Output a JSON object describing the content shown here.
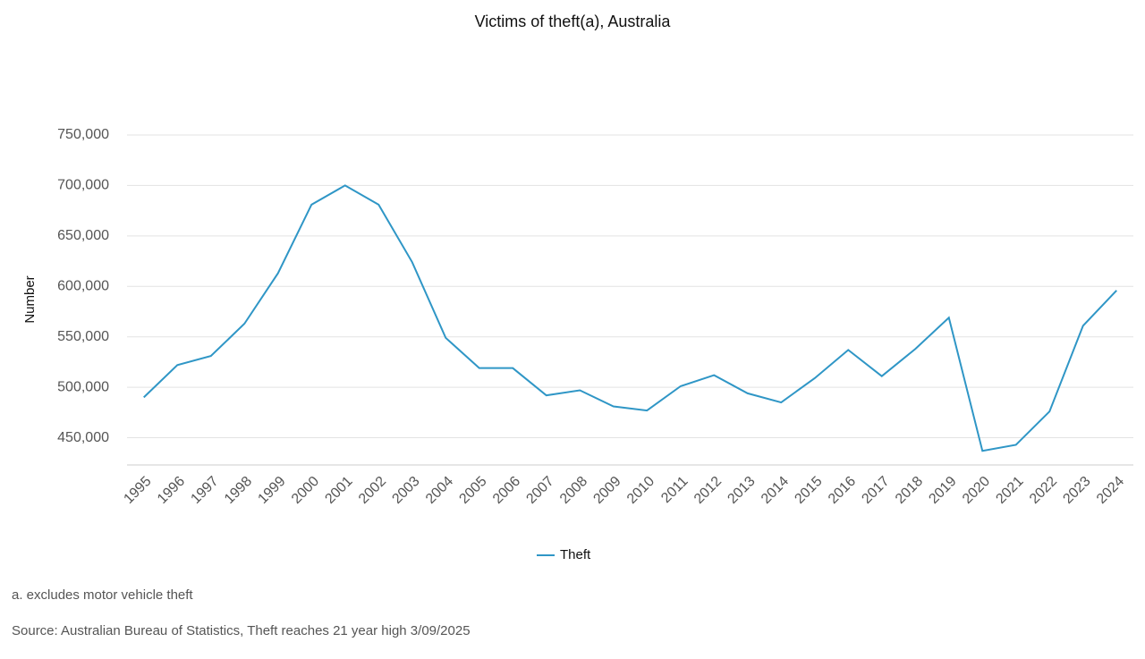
{
  "chart_data": {
    "type": "line",
    "title": "Victims of theft(a), Australia",
    "y_label": "Number",
    "categories": [
      "1995",
      "1996",
      "1997",
      "1998",
      "1999",
      "2000",
      "2001",
      "2002",
      "2003",
      "2004",
      "2005",
      "2006",
      "2007",
      "2008",
      "2009",
      "2010",
      "2011",
      "2012",
      "2013",
      "2014",
      "2015",
      "2016",
      "2017",
      "2018",
      "2019",
      "2020",
      "2021",
      "2022",
      "2023",
      "2024"
    ],
    "series": [
      {
        "name": "Theft",
        "color": "#2f96c6",
        "values": [
          490000,
          522000,
          531000,
          563000,
          613000,
          681000,
          700000,
          681000,
          624000,
          549000,
          519000,
          519000,
          492000,
          497000,
          481000,
          477000,
          501000,
          512000,
          494000,
          485000,
          509000,
          537000,
          511000,
          538000,
          569000,
          437000,
          443000,
          476000,
          561000,
          596000
        ]
      }
    ],
    "ylim": [
      423000,
      750000
    ],
    "yticks": [
      {
        "value": 450000,
        "label": "450,000"
      },
      {
        "value": 500000,
        "label": "500,000"
      },
      {
        "value": 550000,
        "label": "550,000"
      },
      {
        "value": 600000,
        "label": "600,000"
      },
      {
        "value": 650000,
        "label": "650,000"
      },
      {
        "value": 700000,
        "label": "700,000"
      },
      {
        "value": 750000,
        "label": "750,000"
      }
    ],
    "grid": true,
    "legend": "bottom",
    "footnote": "a. excludes motor vehicle theft",
    "source": "Source: Australian Bureau of Statistics, Theft reaches 21 year high 3/09/2025"
  }
}
